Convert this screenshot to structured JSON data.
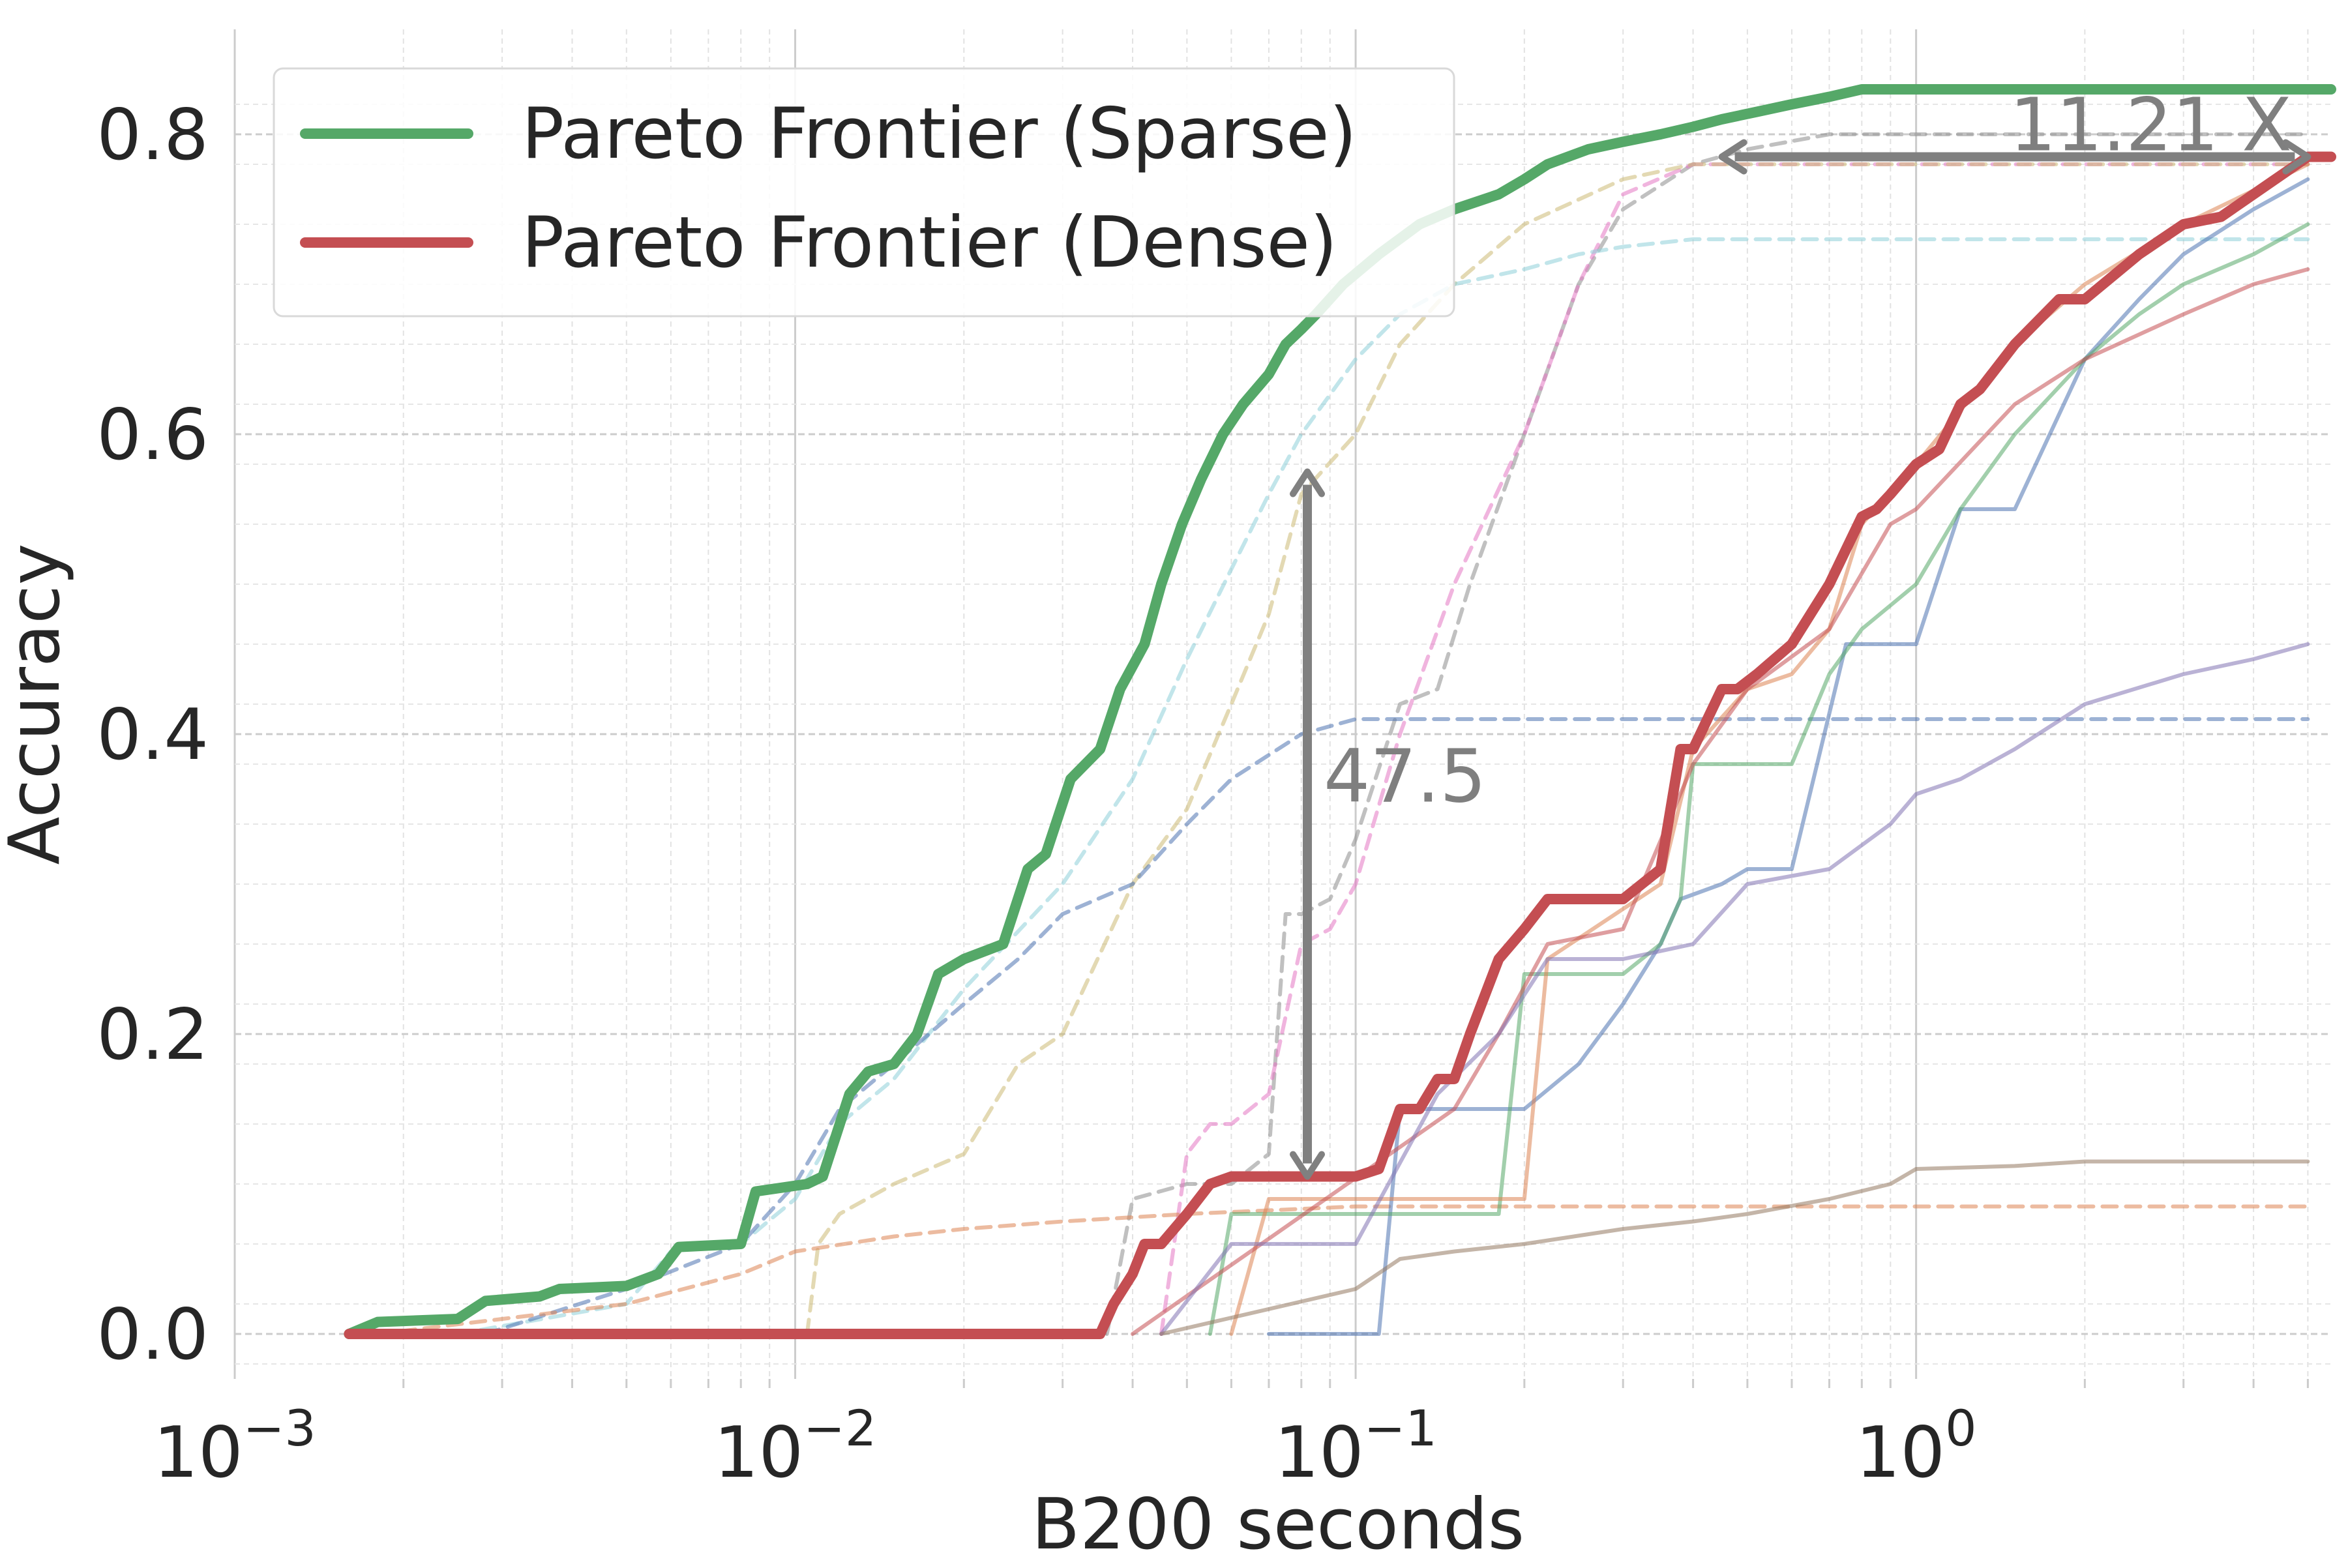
{
  "chart_data": {
    "type": "line",
    "xlabel": "B200 seconds",
    "ylabel": "Accuracy",
    "x_scale": "log",
    "xlim": [
      0.001,
      5.5
    ],
    "ylim": [
      -0.03,
      0.87
    ],
    "grid": true,
    "legend_position": "upper-left",
    "x_ticks": [
      {
        "value": 0.001,
        "base": "10",
        "exp": "−3"
      },
      {
        "value": 0.01,
        "base": "10",
        "exp": "−2"
      },
      {
        "value": 0.1,
        "base": "10",
        "exp": "−1"
      },
      {
        "value": 1,
        "base": "10",
        "exp": "0"
      }
    ],
    "y_ticks": [
      {
        "value": 0,
        "label": "0.0"
      },
      {
        "value": 0.2,
        "label": "0.2"
      },
      {
        "value": 0.4,
        "label": "0.4"
      },
      {
        "value": 0.6,
        "label": "0.6"
      },
      {
        "value": 0.8,
        "label": "0.8"
      }
    ],
    "series": [
      {
        "name": "Pareto Frontier (Sparse)",
        "color": "#55a868",
        "style": "solid",
        "role": "frontier",
        "x": [
          0.0016,
          0.0018,
          0.0025,
          0.0028,
          0.0035,
          0.0038,
          0.005,
          0.0057,
          0.0062,
          0.008,
          0.0085,
          0.0105,
          0.0112,
          0.0125,
          0.0135,
          0.015,
          0.0165,
          0.018,
          0.02,
          0.0235,
          0.026,
          0.028,
          0.031,
          0.035,
          0.038,
          0.042,
          0.045,
          0.049,
          0.053,
          0.058,
          0.063,
          0.07,
          0.075,
          0.08,
          0.085,
          0.095,
          0.11,
          0.13,
          0.15,
          0.18,
          0.2,
          0.22,
          0.26,
          0.3,
          0.35,
          0.4,
          0.45,
          0.52,
          0.6,
          0.7,
          0.8,
          0.9,
          1.0,
          2.0,
          5.5
        ],
        "values": [
          0.0,
          0.008,
          0.01,
          0.022,
          0.025,
          0.03,
          0.032,
          0.04,
          0.058,
          0.06,
          0.095,
          0.1,
          0.105,
          0.16,
          0.175,
          0.18,
          0.2,
          0.24,
          0.25,
          0.26,
          0.31,
          0.32,
          0.37,
          0.39,
          0.43,
          0.46,
          0.5,
          0.54,
          0.57,
          0.6,
          0.62,
          0.64,
          0.66,
          0.67,
          0.68,
          0.7,
          0.72,
          0.74,
          0.75,
          0.76,
          0.77,
          0.78,
          0.79,
          0.795,
          0.8,
          0.805,
          0.81,
          0.815,
          0.82,
          0.825,
          0.83,
          0.83,
          0.83,
          0.83,
          0.83
        ]
      },
      {
        "name": "Pareto Frontier (Dense)",
        "color": "#c44e52",
        "style": "solid",
        "role": "frontier",
        "x": [
          0.0016,
          0.035,
          0.037,
          0.04,
          0.042,
          0.045,
          0.05,
          0.055,
          0.06,
          0.07,
          0.1,
          0.11,
          0.12,
          0.13,
          0.14,
          0.15,
          0.16,
          0.18,
          0.2,
          0.22,
          0.25,
          0.3,
          0.35,
          0.38,
          0.4,
          0.45,
          0.48,
          0.52,
          0.6,
          0.7,
          0.8,
          0.85,
          0.9,
          1.0,
          1.1,
          1.2,
          1.3,
          1.5,
          1.8,
          2.0,
          2.5,
          3.0,
          3.5,
          4.0,
          5.0,
          5.5
        ],
        "values": [
          0.0,
          0.0,
          0.02,
          0.04,
          0.06,
          0.06,
          0.08,
          0.1,
          0.105,
          0.105,
          0.105,
          0.11,
          0.15,
          0.15,
          0.17,
          0.17,
          0.2,
          0.25,
          0.27,
          0.29,
          0.29,
          0.29,
          0.31,
          0.39,
          0.39,
          0.43,
          0.43,
          0.44,
          0.46,
          0.5,
          0.545,
          0.55,
          0.56,
          0.58,
          0.59,
          0.62,
          0.63,
          0.66,
          0.69,
          0.69,
          0.72,
          0.74,
          0.745,
          0.76,
          0.785,
          0.785
        ]
      },
      {
        "color": "#8c8c8c",
        "style": "dashed",
        "role": "background",
        "x": [
          0.036,
          0.04,
          0.05,
          0.06,
          0.07,
          0.075,
          0.08,
          0.09,
          0.1,
          0.12,
          0.14,
          0.16,
          0.2,
          0.25,
          0.3,
          0.4,
          0.5,
          0.7,
          1.0,
          2.0,
          5.0
        ],
        "values": [
          0.0,
          0.09,
          0.1,
          0.1,
          0.12,
          0.28,
          0.28,
          0.29,
          0.33,
          0.42,
          0.43,
          0.5,
          0.6,
          0.7,
          0.75,
          0.78,
          0.79,
          0.8,
          0.8,
          0.8,
          0.8
        ]
      },
      {
        "color": "#e377c2",
        "style": "dashed",
        "role": "background",
        "x": [
          0.045,
          0.05,
          0.055,
          0.06,
          0.07,
          0.08,
          0.09,
          0.1,
          0.12,
          0.15,
          0.2,
          0.25,
          0.3,
          0.4,
          0.5,
          1.0,
          5.0
        ],
        "values": [
          0.0,
          0.12,
          0.14,
          0.14,
          0.16,
          0.26,
          0.27,
          0.3,
          0.4,
          0.5,
          0.6,
          0.7,
          0.76,
          0.78,
          0.78,
          0.78,
          0.78
        ]
      },
      {
        "color": "#ccb974",
        "style": "dashed",
        "role": "background",
        "x": [
          0.0105,
          0.011,
          0.012,
          0.015,
          0.02,
          0.025,
          0.03,
          0.04,
          0.05,
          0.06,
          0.07,
          0.08,
          0.1,
          0.12,
          0.15,
          0.2,
          0.3,
          0.4,
          0.6,
          1.0,
          5.0
        ],
        "values": [
          0.0,
          0.06,
          0.08,
          0.1,
          0.12,
          0.18,
          0.2,
          0.3,
          0.35,
          0.42,
          0.48,
          0.56,
          0.6,
          0.66,
          0.7,
          0.74,
          0.77,
          0.78,
          0.78,
          0.78,
          0.78
        ]
      },
      {
        "color": "#8ecfd9",
        "style": "dashed",
        "role": "background",
        "x": [
          0.0025,
          0.005,
          0.006,
          0.008,
          0.01,
          0.012,
          0.015,
          0.02,
          0.03,
          0.04,
          0.05,
          0.06,
          0.07,
          0.08,
          0.1,
          0.12,
          0.15,
          0.2,
          0.25,
          0.3,
          0.4,
          0.6,
          1.0,
          5.0
        ],
        "values": [
          0.0,
          0.02,
          0.055,
          0.06,
          0.09,
          0.14,
          0.17,
          0.23,
          0.3,
          0.37,
          0.45,
          0.51,
          0.56,
          0.6,
          0.65,
          0.68,
          0.7,
          0.71,
          0.72,
          0.725,
          0.73,
          0.73,
          0.73,
          0.73
        ]
      },
      {
        "color": "#4c72b0",
        "style": "dashed",
        "role": "background",
        "x": [
          0.0028,
          0.005,
          0.008,
          0.01,
          0.012,
          0.015,
          0.02,
          0.025,
          0.03,
          0.04,
          0.05,
          0.06,
          0.08,
          0.1,
          0.15,
          0.3,
          1.0,
          5.0
        ],
        "values": [
          0.0,
          0.03,
          0.06,
          0.1,
          0.15,
          0.18,
          0.22,
          0.25,
          0.28,
          0.3,
          0.34,
          0.37,
          0.4,
          0.41,
          0.41,
          0.41,
          0.41,
          0.41
        ]
      },
      {
        "color": "#dd8452",
        "style": "dashed",
        "role": "background",
        "x": [
          0.0018,
          0.003,
          0.005,
          0.008,
          0.01,
          0.015,
          0.02,
          0.03,
          0.05,
          0.1,
          0.3,
          1.0,
          5.0
        ],
        "values": [
          0.0,
          0.01,
          0.02,
          0.04,
          0.055,
          0.065,
          0.07,
          0.075,
          0.08,
          0.085,
          0.085,
          0.085,
          0.085
        ]
      },
      {
        "color": "#4c72b0",
        "style": "solid",
        "role": "background",
        "x": [
          0.07,
          0.11,
          0.12,
          0.2,
          0.25,
          0.3,
          0.35,
          0.38,
          0.45,
          0.5,
          0.6,
          0.75,
          0.8,
          1.0,
          1.2,
          1.5,
          2.0,
          2.5,
          3.0,
          4.0,
          5.0
        ],
        "values": [
          0.0,
          0.0,
          0.15,
          0.15,
          0.18,
          0.22,
          0.26,
          0.29,
          0.3,
          0.31,
          0.31,
          0.46,
          0.46,
          0.46,
          0.55,
          0.55,
          0.65,
          0.69,
          0.72,
          0.75,
          0.77
        ]
      },
      {
        "color": "#55a868",
        "style": "solid",
        "role": "background",
        "x": [
          0.055,
          0.06,
          0.18,
          0.2,
          0.3,
          0.35,
          0.38,
          0.4,
          0.5,
          0.6,
          0.7,
          0.8,
          1.0,
          1.2,
          1.5,
          2.0,
          2.5,
          3.0,
          4.0,
          5.0
        ],
        "values": [
          0.0,
          0.08,
          0.08,
          0.24,
          0.24,
          0.26,
          0.29,
          0.38,
          0.38,
          0.38,
          0.44,
          0.47,
          0.5,
          0.55,
          0.6,
          0.65,
          0.68,
          0.7,
          0.72,
          0.74
        ]
      },
      {
        "color": "#dd8452",
        "style": "solid",
        "role": "background",
        "x": [
          0.06,
          0.07,
          0.2,
          0.22,
          0.35,
          0.4,
          0.5,
          0.6,
          0.7,
          0.8,
          1.0,
          1.5,
          2.0,
          3.0,
          5.0
        ],
        "values": [
          0.0,
          0.09,
          0.09,
          0.25,
          0.3,
          0.39,
          0.43,
          0.44,
          0.47,
          0.54,
          0.58,
          0.66,
          0.7,
          0.74,
          0.78
        ]
      },
      {
        "color": "#c44e52",
        "style": "solid",
        "role": "background",
        "x": [
          0.04,
          0.15,
          0.18,
          0.22,
          0.3,
          0.4,
          0.5,
          0.7,
          0.9,
          1.0,
          1.5,
          2.0,
          3.0,
          4.0,
          5.0
        ],
        "values": [
          0.0,
          0.15,
          0.2,
          0.26,
          0.27,
          0.38,
          0.43,
          0.47,
          0.54,
          0.55,
          0.62,
          0.65,
          0.68,
          0.7,
          0.71
        ]
      },
      {
        "color": "#8172b2",
        "style": "solid",
        "role": "background",
        "x": [
          0.045,
          0.06,
          0.1,
          0.14,
          0.18,
          0.22,
          0.3,
          0.4,
          0.5,
          0.7,
          0.9,
          1.0,
          1.2,
          1.5,
          2.0,
          3.0,
          4.0,
          5.0
        ],
        "values": [
          0.0,
          0.06,
          0.06,
          0.16,
          0.2,
          0.25,
          0.25,
          0.26,
          0.3,
          0.31,
          0.34,
          0.36,
          0.37,
          0.39,
          0.42,
          0.44,
          0.45,
          0.46
        ]
      },
      {
        "color": "#937860",
        "style": "solid",
        "role": "background",
        "x": [
          0.045,
          0.1,
          0.12,
          0.15,
          0.2,
          0.3,
          0.4,
          0.5,
          0.7,
          0.9,
          1.0,
          1.5,
          2.0,
          5.0
        ],
        "values": [
          0.0,
          0.03,
          0.05,
          0.055,
          0.06,
          0.07,
          0.075,
          0.08,
          0.09,
          0.1,
          0.11,
          0.112,
          0.115,
          0.115
        ]
      }
    ],
    "annotations": [
      {
        "text": "47.5",
        "type": "vertical-arrow",
        "x": 0.082,
        "y_from": 0.575,
        "y_to": 0.105
      },
      {
        "text": "11.21 X",
        "type": "horizontal-arrow",
        "y": 0.785,
        "x_from": 0.45,
        "x_to": 5.0
      }
    ]
  }
}
